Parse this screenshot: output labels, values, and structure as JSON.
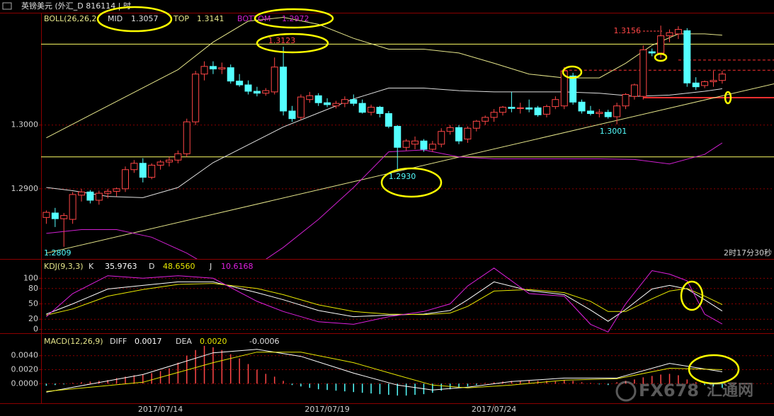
{
  "title": "英镑美元 (外汇_D  816114 | 时",
  "watermark": {
    "brand": "FX678",
    "site": "汇通网"
  },
  "timer": "2时17分30秒",
  "chart_data": [
    {
      "type": "candlestick",
      "indicator": "BOLL(26,26,2",
      "up_color": "#ff4646",
      "down_color": "#54ffff",
      "xlim": [
        -0.6,
        82.9
      ],
      "ylim": [
        1.2791,
        1.3174
      ],
      "yticks": [
        {
          "value": 1.29,
          "label": "1.2900"
        },
        {
          "value": 1.3,
          "label": "1.3000"
        }
      ],
      "grid": true,
      "open": [
        1.2855,
        1.2862,
        1.2853,
        1.2852,
        1.289,
        1.2895,
        1.2882,
        1.2893,
        1.2896,
        1.29,
        1.293,
        1.294,
        1.2918,
        1.2937,
        1.2942,
        1.2945,
        1.2955,
        1.3005,
        1.308,
        1.3092,
        1.3088,
        1.309,
        1.3069,
        1.3063,
        1.3053,
        1.305,
        1.3052,
        1.3091,
        1.3022,
        1.3012,
        1.304,
        1.3046,
        1.3035,
        1.303,
        1.3034,
        1.304,
        1.3034,
        1.302,
        1.3028,
        1.3018,
        1.2998,
        1.2965,
        1.297,
        1.2975,
        1.2962,
        1.297,
        1.299,
        1.2996,
        1.2978,
        1.2995,
        1.3006,
        1.3012,
        1.302,
        1.3028,
        1.3026,
        1.3027,
        1.3027,
        1.3017,
        1.3029,
        1.303,
        1.3077,
        1.3036,
        1.3022,
        1.3018,
        1.302,
        1.3013,
        1.303,
        1.3045,
        1.3045,
        1.3115,
        1.3113,
        1.314,
        1.3143,
        1.3148,
        1.3066,
        1.3062,
        1.3068,
        1.307
      ],
      "high": [
        1.2866,
        1.287,
        1.2862,
        1.2895,
        1.29,
        1.2898,
        1.2897,
        1.29,
        1.2902,
        1.2935,
        1.2945,
        1.2948,
        1.294,
        1.2945,
        1.295,
        1.296,
        1.301,
        1.3085,
        1.31,
        1.31,
        1.3098,
        1.3095,
        1.308,
        1.307,
        1.306,
        1.3058,
        1.3106,
        1.3123,
        1.303,
        1.3048,
        1.3052,
        1.305,
        1.3042,
        1.3038,
        1.3045,
        1.3048,
        1.304,
        1.3032,
        1.303,
        1.3022,
        1.3,
        1.2978,
        1.2982,
        1.2978,
        1.2975,
        1.2995,
        1.3,
        1.3,
        1.2998,
        1.3008,
        1.3015,
        1.3025,
        1.303,
        1.3052,
        1.3035,
        1.304,
        1.303,
        1.3032,
        1.3045,
        1.3091,
        1.3082,
        1.304,
        1.303,
        1.3025,
        1.3024,
        1.3035,
        1.305,
        1.3065,
        1.3125,
        1.312,
        1.3156,
        1.315,
        1.3155,
        1.3152,
        1.3075,
        1.307,
        1.3085,
        1.3085
      ],
      "low": [
        1.2845,
        1.284,
        1.2809,
        1.2845,
        1.288,
        1.2877,
        1.2875,
        1.2885,
        1.2888,
        1.2895,
        1.2925,
        1.291,
        1.2915,
        1.293,
        1.2935,
        1.294,
        1.295,
        1.3,
        1.307,
        1.308,
        1.308,
        1.3065,
        1.306,
        1.3048,
        1.3045,
        1.3046,
        1.3048,
        1.3015,
        1.3005,
        1.3008,
        1.3035,
        1.303,
        1.3028,
        1.3026,
        1.3028,
        1.303,
        1.3018,
        1.3015,
        1.3012,
        1.2995,
        1.293,
        1.296,
        1.2962,
        1.2958,
        1.2958,
        1.2965,
        1.2985,
        1.297,
        1.2972,
        1.299,
        1.3,
        1.3005,
        1.3015,
        1.302,
        1.3018,
        1.302,
        1.3013,
        1.3012,
        1.3025,
        1.3025,
        1.3032,
        1.3018,
        1.3015,
        1.3012,
        1.301,
        1.3001,
        1.3025,
        1.304,
        1.304,
        1.3108,
        1.3105,
        1.313,
        1.3135,
        1.306,
        1.3055,
        1.3058,
        1.306,
        1.3065
      ],
      "close": [
        1.2863,
        1.2853,
        1.2858,
        1.2891,
        1.2895,
        1.2882,
        1.2893,
        1.2896,
        1.29,
        1.293,
        1.294,
        1.2918,
        1.2937,
        1.2942,
        1.2945,
        1.2955,
        1.3005,
        1.308,
        1.3092,
        1.3088,
        1.309,
        1.3069,
        1.3063,
        1.3053,
        1.305,
        1.3054,
        1.3091,
        1.3022,
        1.301,
        1.3044,
        1.3046,
        1.3035,
        1.3032,
        1.3034,
        1.304,
        1.3034,
        1.302,
        1.3028,
        1.3018,
        1.2998,
        1.2965,
        1.2975,
        1.2975,
        1.2962,
        1.297,
        1.299,
        1.2996,
        1.2975,
        1.2995,
        1.3006,
        1.3012,
        1.302,
        1.3028,
        1.3026,
        1.3027,
        1.3025,
        1.3016,
        1.3029,
        1.304,
        1.3085,
        1.3036,
        1.3022,
        1.3018,
        1.302,
        1.3013,
        1.303,
        1.3048,
        1.3063,
        1.3118,
        1.3113,
        1.314,
        1.3145,
        1.315,
        1.3066,
        1.306,
        1.3068,
        1.307,
        1.308
      ],
      "series": [
        {
          "name": "MID",
          "color": "#e0e0e0",
          "x": [
            0,
            3,
            7,
            11,
            15,
            19,
            23,
            27,
            31,
            35,
            39,
            43,
            47,
            51,
            55,
            59,
            63,
            67,
            71,
            75,
            77
          ],
          "values": [
            1.2902,
            1.2897,
            1.2888,
            1.2886,
            1.2902,
            1.2941,
            1.2969,
            1.2997,
            1.3019,
            1.3041,
            1.3058,
            1.3058,
            1.3054,
            1.3052,
            1.3052,
            1.3052,
            1.305,
            1.3045,
            1.3047,
            1.3053,
            1.3057
          ]
        },
        {
          "name": "TOP",
          "color": "#e6e68a",
          "x": [
            0,
            15,
            19,
            23,
            27,
            31,
            35,
            39,
            43,
            47,
            51,
            55,
            59,
            63,
            66,
            69,
            72,
            75,
            77
          ],
          "values": [
            1.298,
            1.3087,
            1.313,
            1.3163,
            1.3169,
            1.3158,
            1.3136,
            1.3119,
            1.3119,
            1.3113,
            1.3097,
            1.308,
            1.3074,
            1.3074,
            1.3097,
            1.3125,
            1.3143,
            1.3143,
            1.3141
          ]
        },
        {
          "name": "BOTTOM",
          "color": "#d020d0",
          "x": [
            0,
            4,
            8,
            12,
            16,
            19,
            24,
            27,
            31,
            35,
            39,
            43,
            47,
            51,
            55,
            59,
            63,
            67,
            71,
            75,
            77
          ],
          "values": [
            1.283,
            1.2836,
            1.2836,
            1.2824,
            1.2799,
            1.2775,
            1.278,
            1.2808,
            1.2852,
            1.2902,
            1.2958,
            1.2961,
            1.295,
            1.2947,
            1.2947,
            1.2947,
            1.2947,
            1.2946,
            1.2939,
            1.2954,
            1.2972
          ]
        }
      ],
      "hlines": [
        1.3127,
        1.295
      ],
      "hline_color": "#ffff66",
      "levels": [
        {
          "value": 1.3086,
          "from": 59,
          "style": "dashed"
        },
        {
          "value": 1.3102,
          "from": 72,
          "style": "dashed"
        },
        {
          "value": 1.3043,
          "from": 68,
          "style": "solid"
        }
      ],
      "level_color": "#ff3030",
      "trendline": {
        "color": "#e6e68a",
        "x": [
          0,
          83
        ],
        "values": [
          1.2799,
          1.3065
        ]
      },
      "annotations": [
        {
          "value": 1.3156,
          "label": "1.3156",
          "color": "#ff4646"
        },
        {
          "value": 1.3123,
          "label": "1.3123",
          "color": "#ff4646"
        },
        {
          "value": 1.293,
          "label": "1.2930",
          "color": "#54ffff"
        },
        {
          "value": 1.3001,
          "label": "1.3001",
          "color": "#54ffff"
        },
        {
          "value": 1.2809,
          "label": "1.2809",
          "color": "#54ffff"
        }
      ]
    },
    {
      "type": "line",
      "indicator": "KDJ(9,3,3)",
      "xlim": [
        -0.6,
        82.9
      ],
      "ylim": [
        -6,
        135
      ],
      "yticks": [
        0,
        20,
        50,
        80,
        100
      ],
      "grid": true,
      "series": [
        {
          "name": "K",
          "color": "#ffffff",
          "value_label": "35.9763",
          "x": [
            0,
            3,
            7,
            11,
            15,
            19,
            24,
            27,
            31,
            35,
            39,
            43,
            46,
            48,
            51,
            55,
            59,
            62,
            64,
            66,
            69,
            71,
            73,
            75,
            77
          ],
          "values": [
            30,
            50,
            79,
            86,
            93,
            93,
            72,
            58,
            37,
            25,
            28,
            30,
            37,
            58,
            93,
            76,
            68,
            38,
            16,
            39,
            79,
            86,
            79,
            58,
            35.9763
          ]
        },
        {
          "name": "D",
          "color": "#e8e800",
          "value_label": "48.6560",
          "x": [
            0,
            3,
            7,
            11,
            15,
            19,
            24,
            27,
            31,
            35,
            39,
            43,
            46,
            48,
            51,
            55,
            59,
            62,
            64,
            66,
            69,
            71,
            73,
            75,
            77
          ],
          "values": [
            28,
            40,
            65,
            78,
            88,
            90,
            80,
            68,
            48,
            35,
            30,
            29,
            32,
            45,
            75,
            78,
            72,
            55,
            35,
            35,
            60,
            75,
            80,
            65,
            48.656
          ]
        },
        {
          "name": "J",
          "color": "#e020e0",
          "value_label": "10.6168",
          "x": [
            0,
            3,
            7,
            11,
            15,
            19,
            24,
            27,
            31,
            35,
            39,
            43,
            46,
            48,
            51,
            55,
            59,
            62,
            64,
            66,
            69,
            71,
            73,
            75,
            77
          ],
          "values": [
            25,
            70,
            105,
            100,
            105,
            100,
            55,
            35,
            15,
            10,
            25,
            35,
            50,
            85,
            120,
            70,
            65,
            10,
            -5,
            50,
            115,
            108,
            95,
            30,
            10.6168
          ]
        }
      ]
    },
    {
      "type": "macd",
      "indicator": "MACD(12,26,9)",
      "xlim": [
        -0.6,
        82.9
      ],
      "ylim": [
        -0.0028,
        0.007
      ],
      "yticks": [
        {
          "value": 0,
          "label": "0.0000"
        },
        {
          "value": 0.002,
          "label": "0.0020"
        },
        {
          "value": 0.004,
          "label": "0.0040"
        }
      ],
      "grid": true,
      "xticks": [
        {
          "value": 13,
          "label": "2017/07/14"
        },
        {
          "value": 32,
          "label": "2017/07/19"
        },
        {
          "value": 51,
          "label": "2017/07/24"
        }
      ],
      "series": [
        {
          "name": "DIFF",
          "color": "#ffffff",
          "value_label": "0.0017",
          "x": [
            0,
            11,
            19,
            24,
            29,
            35,
            40,
            44,
            48,
            53,
            59,
            65,
            71,
            77
          ],
          "values": [
            -0.0012,
            0.0013,
            0.0044,
            0.0049,
            0.0039,
            0.0015,
            -0.0002,
            -0.0009,
            -0.0005,
            0.0003,
            0.0008,
            0.0008,
            0.0029,
            0.0017
          ]
        },
        {
          "name": "DEA",
          "color": "#e8e800",
          "value_label": "0.0020",
          "x": [
            0,
            11,
            19,
            24,
            29,
            35,
            40,
            44,
            48,
            53,
            59,
            65,
            71,
            77
          ],
          "values": [
            -0.0011,
            0.0002,
            0.003,
            0.0045,
            0.0045,
            0.003,
            0.0012,
            -0.0002,
            -0.0006,
            -0.0002,
            0.0005,
            0.0007,
            0.0022,
            0.002
          ]
        }
      ],
      "bars": {
        "up_color": "#ff4646",
        "down_color": "#54ffff",
        "values": [
          -0.0003,
          -0.0002,
          -0.0001,
          0.0001,
          0.0002,
          0.0003,
          0.0004,
          0.0005,
          0.0008,
          0.001,
          0.0012,
          0.0013,
          0.0015,
          0.0018,
          0.0022,
          0.003,
          0.004,
          0.0048,
          0.0054,
          0.0052,
          0.0048,
          0.0042,
          0.0036,
          0.0028,
          0.002,
          0.0014,
          0.001,
          0.0004,
          -0.0002,
          -0.0004,
          -0.0006,
          -0.0008,
          -0.0009,
          -0.001,
          -0.0011,
          -0.0012,
          -0.0013,
          -0.0014,
          -0.0015,
          -0.0016,
          -0.0017,
          -0.0017,
          -0.0016,
          -0.0015,
          -0.0013,
          -0.001,
          -0.0008,
          -0.0006,
          -0.0004,
          -0.0002,
          0.0001,
          0.0002,
          0.0003,
          0.0004,
          0.0004,
          0.0005,
          0.0004,
          0.0004,
          0.0003,
          0.0005,
          0.0004,
          0.0002,
          0.0001,
          -0.0001,
          -0.0002,
          0.0002,
          0.0004,
          0.0006,
          0.0009,
          0.0011,
          0.0013,
          0.0014,
          0.0012,
          0.0006,
          0.0002,
          -0.0002,
          -0.0004,
          -0.0006
        ]
      }
    }
  ]
}
